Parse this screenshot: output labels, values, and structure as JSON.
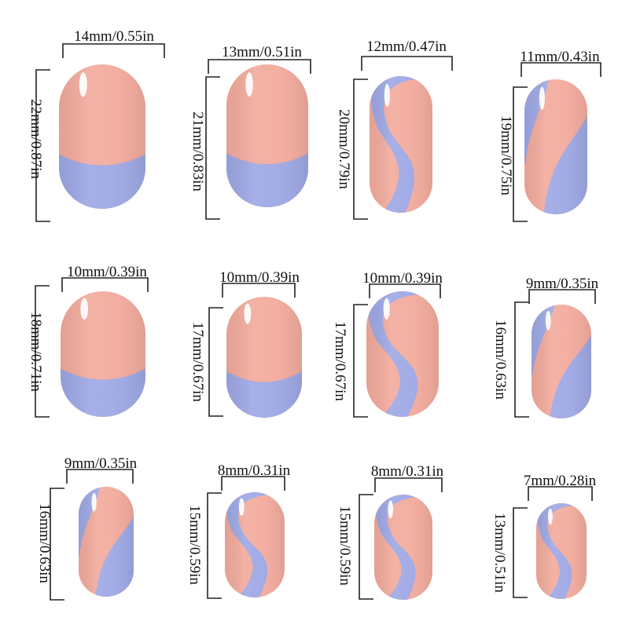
{
  "colors": {
    "pink": "#f2aa9c",
    "blue": "#9da7e4",
    "line": "#222222",
    "background": "#ffffff"
  },
  "nails": [
    {
      "style": "french",
      "width_label": "14mm/0.55in",
      "length_label": "22mm/0.87in"
    },
    {
      "style": "french",
      "width_label": "13mm/0.51in",
      "length_label": "21mm/0.83in"
    },
    {
      "style": "swirl",
      "width_label": "12mm/0.47in",
      "length_label": "20mm/0.79in"
    },
    {
      "style": "wave",
      "width_label": "11mm/0.43in",
      "length_label": "19mm/0.75in"
    },
    {
      "style": "french",
      "width_label": "10mm/0.39in",
      "length_label": "18mm/0.71in"
    },
    {
      "style": "french",
      "width_label": "10mm/0.39in",
      "length_label": "17mm/0.67in"
    },
    {
      "style": "swirl",
      "width_label": "10mm/0.39in",
      "length_label": "17mm/0.67in"
    },
    {
      "style": "wave",
      "width_label": "9mm/0.35in",
      "length_label": "16mm/0.63in"
    },
    {
      "style": "wave",
      "width_label": "9mm/0.35in",
      "length_label": "16mm/0.63in"
    },
    {
      "style": "swirl",
      "width_label": "8mm/0.31in",
      "length_label": "15mm/0.59in"
    },
    {
      "style": "swirl",
      "width_label": "8mm/0.31in",
      "length_label": "15mm/0.59in"
    },
    {
      "style": "swirl",
      "width_label": "7mm/0.28in",
      "length_label": "13mm/0.51in"
    }
  ]
}
